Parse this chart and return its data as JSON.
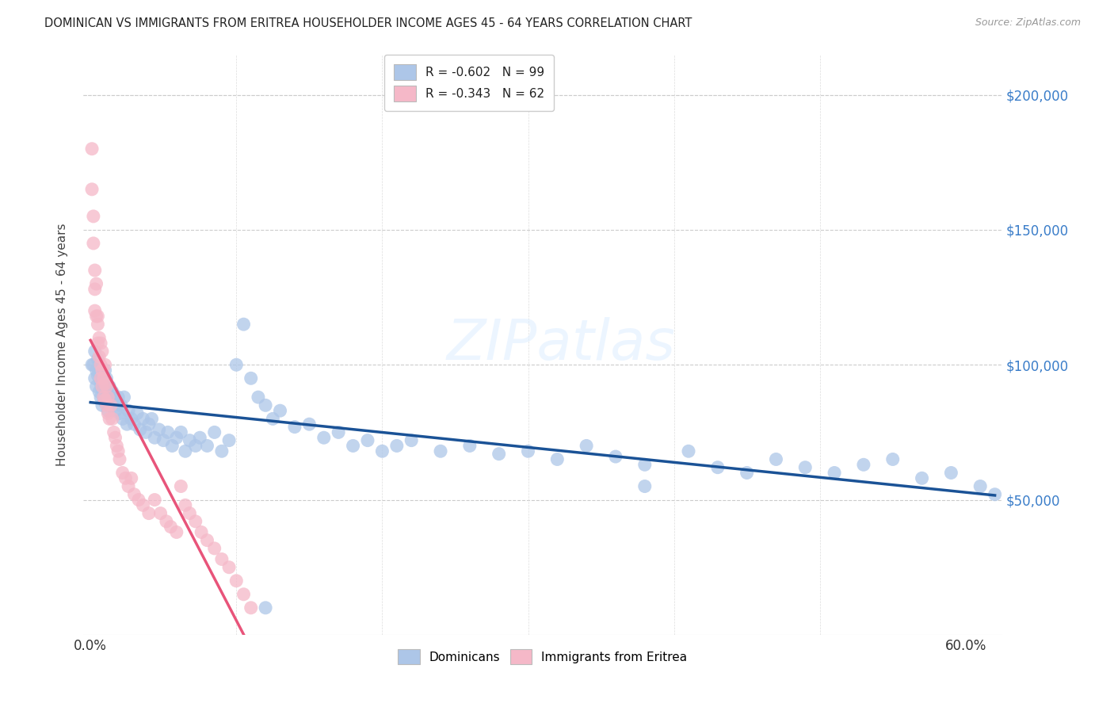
{
  "title": "DOMINICAN VS IMMIGRANTS FROM ERITREA HOUSEHOLDER INCOME AGES 45 - 64 YEARS CORRELATION CHART",
  "source": "Source: ZipAtlas.com",
  "ylabel": "Householder Income Ages 45 - 64 years",
  "xlim": [
    -0.005,
    0.625
  ],
  "ylim": [
    0,
    215000
  ],
  "yticks": [
    50000,
    100000,
    150000,
    200000
  ],
  "ytick_labels": [
    "$50,000",
    "$100,000",
    "$150,000",
    "$200,000"
  ],
  "xtick_labels_shown": [
    "0.0%",
    "60.0%"
  ],
  "xtick_vals_shown": [
    0.0,
    0.6
  ],
  "legend_labels": [
    "R = -0.602   N = 99",
    "R = -0.343   N = 62"
  ],
  "blue_color": "#adc6e8",
  "blue_line_color": "#1a5296",
  "pink_color": "#f5b8c8",
  "pink_line_color": "#e8547a",
  "pink_dash_color": "#f0b0c0",
  "dominicans_x": [
    0.001,
    0.002,
    0.003,
    0.003,
    0.004,
    0.004,
    0.005,
    0.005,
    0.006,
    0.006,
    0.007,
    0.007,
    0.008,
    0.008,
    0.008,
    0.009,
    0.009,
    0.01,
    0.01,
    0.01,
    0.011,
    0.011,
    0.012,
    0.012,
    0.013,
    0.013,
    0.014,
    0.015,
    0.016,
    0.017,
    0.018,
    0.019,
    0.02,
    0.021,
    0.022,
    0.023,
    0.025,
    0.026,
    0.028,
    0.03,
    0.032,
    0.034,
    0.036,
    0.038,
    0.04,
    0.042,
    0.044,
    0.047,
    0.05,
    0.053,
    0.056,
    0.059,
    0.062,
    0.065,
    0.068,
    0.072,
    0.075,
    0.08,
    0.085,
    0.09,
    0.095,
    0.1,
    0.105,
    0.11,
    0.115,
    0.12,
    0.125,
    0.13,
    0.14,
    0.15,
    0.16,
    0.17,
    0.18,
    0.19,
    0.2,
    0.21,
    0.22,
    0.24,
    0.26,
    0.28,
    0.3,
    0.32,
    0.34,
    0.36,
    0.38,
    0.41,
    0.43,
    0.45,
    0.47,
    0.49,
    0.51,
    0.53,
    0.55,
    0.57,
    0.59,
    0.61,
    0.62,
    0.38,
    0.12
  ],
  "dominicans_y": [
    100000,
    100000,
    95000,
    105000,
    92000,
    98000,
    96000,
    102000,
    90000,
    97000,
    93000,
    88000,
    95000,
    85000,
    91000,
    88000,
    94000,
    93000,
    86000,
    98000,
    90000,
    95000,
    83000,
    88000,
    92000,
    85000,
    88000,
    90000,
    87000,
    83000,
    86000,
    88000,
    82000,
    85000,
    80000,
    88000,
    78000,
    83000,
    80000,
    78000,
    82000,
    76000,
    80000,
    75000,
    78000,
    80000,
    73000,
    76000,
    72000,
    75000,
    70000,
    73000,
    75000,
    68000,
    72000,
    70000,
    73000,
    70000,
    75000,
    68000,
    72000,
    100000,
    115000,
    95000,
    88000,
    85000,
    80000,
    83000,
    77000,
    78000,
    73000,
    75000,
    70000,
    72000,
    68000,
    70000,
    72000,
    68000,
    70000,
    67000,
    68000,
    65000,
    70000,
    66000,
    63000,
    68000,
    62000,
    60000,
    65000,
    62000,
    60000,
    63000,
    65000,
    58000,
    60000,
    55000,
    52000,
    55000,
    10000
  ],
  "eritrea_x": [
    0.001,
    0.001,
    0.002,
    0.002,
    0.003,
    0.003,
    0.003,
    0.004,
    0.004,
    0.005,
    0.005,
    0.005,
    0.006,
    0.006,
    0.007,
    0.007,
    0.007,
    0.008,
    0.008,
    0.008,
    0.009,
    0.009,
    0.01,
    0.01,
    0.01,
    0.011,
    0.011,
    0.012,
    0.012,
    0.013,
    0.014,
    0.015,
    0.016,
    0.017,
    0.018,
    0.019,
    0.02,
    0.022,
    0.024,
    0.026,
    0.028,
    0.03,
    0.033,
    0.036,
    0.04,
    0.044,
    0.048,
    0.052,
    0.055,
    0.059,
    0.062,
    0.065,
    0.068,
    0.072,
    0.076,
    0.08,
    0.085,
    0.09,
    0.095,
    0.1,
    0.105,
    0.11
  ],
  "eritrea_y": [
    180000,
    165000,
    155000,
    145000,
    135000,
    128000,
    120000,
    130000,
    118000,
    115000,
    108000,
    118000,
    110000,
    103000,
    108000,
    100000,
    95000,
    98000,
    92000,
    105000,
    95000,
    88000,
    93000,
    100000,
    87000,
    92000,
    85000,
    88000,
    82000,
    80000,
    85000,
    80000,
    75000,
    73000,
    70000,
    68000,
    65000,
    60000,
    58000,
    55000,
    58000,
    52000,
    50000,
    48000,
    45000,
    50000,
    45000,
    42000,
    40000,
    38000,
    55000,
    48000,
    45000,
    42000,
    38000,
    35000,
    32000,
    28000,
    25000,
    20000,
    15000,
    10000
  ]
}
